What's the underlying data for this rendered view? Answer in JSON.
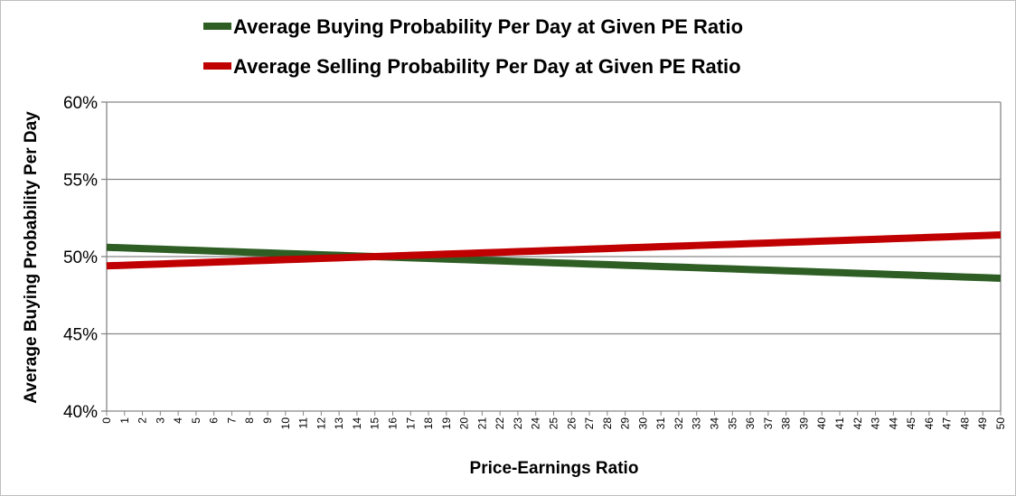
{
  "chart_data": {
    "type": "line",
    "title": "",
    "xlabel": "Price-Earnings Ratio",
    "ylabel": "Average Buying Probability Per Day",
    "ylim": [
      40,
      60
    ],
    "yticks": [
      "40%",
      "45%",
      "50%",
      "55%",
      "60%"
    ],
    "ytick_values": [
      40,
      45,
      50,
      55,
      60
    ],
    "x": [
      0,
      1,
      2,
      3,
      4,
      5,
      6,
      7,
      8,
      9,
      10,
      11,
      12,
      13,
      14,
      15,
      16,
      17,
      18,
      19,
      20,
      21,
      22,
      23,
      24,
      25,
      26,
      27,
      28,
      29,
      30,
      31,
      32,
      33,
      34,
      35,
      36,
      37,
      38,
      39,
      40,
      41,
      42,
      43,
      44,
      45,
      46,
      47,
      48,
      49,
      50
    ],
    "grid": "horizontal",
    "legend_placement": "top",
    "series": [
      {
        "name": "Average Buying Probability Per Day at Given PE Ratio",
        "color": "#2e5e24",
        "values": [
          50.6,
          50.56,
          50.52,
          50.48,
          50.44,
          50.4,
          50.36,
          50.32,
          50.28,
          50.24,
          50.2,
          50.16,
          50.12,
          50.08,
          50.04,
          50.0,
          49.96,
          49.92,
          49.88,
          49.84,
          49.8,
          49.76,
          49.72,
          49.68,
          49.64,
          49.6,
          49.56,
          49.52,
          49.48,
          49.44,
          49.4,
          49.36,
          49.32,
          49.28,
          49.24,
          49.2,
          49.16,
          49.12,
          49.08,
          49.04,
          49.0,
          48.96,
          48.92,
          48.88,
          48.84,
          48.8,
          48.76,
          48.72,
          48.68,
          48.64,
          48.6
        ]
      },
      {
        "name": "Average Selling Probability Per Day at Given PE Ratio",
        "color": "#c00000",
        "values": [
          49.4,
          49.44,
          49.48,
          49.52,
          49.56,
          49.6,
          49.64,
          49.68,
          49.72,
          49.76,
          49.8,
          49.84,
          49.88,
          49.92,
          49.96,
          50.0,
          50.04,
          50.08,
          50.12,
          50.16,
          50.2,
          50.24,
          50.28,
          50.32,
          50.36,
          50.4,
          50.44,
          50.48,
          50.52,
          50.56,
          50.6,
          50.64,
          50.68,
          50.72,
          50.76,
          50.8,
          50.84,
          50.88,
          50.92,
          50.96,
          51.0,
          51.04,
          51.08,
          51.12,
          51.16,
          51.2,
          51.24,
          51.28,
          51.32,
          51.36,
          51.4
        ]
      }
    ]
  }
}
